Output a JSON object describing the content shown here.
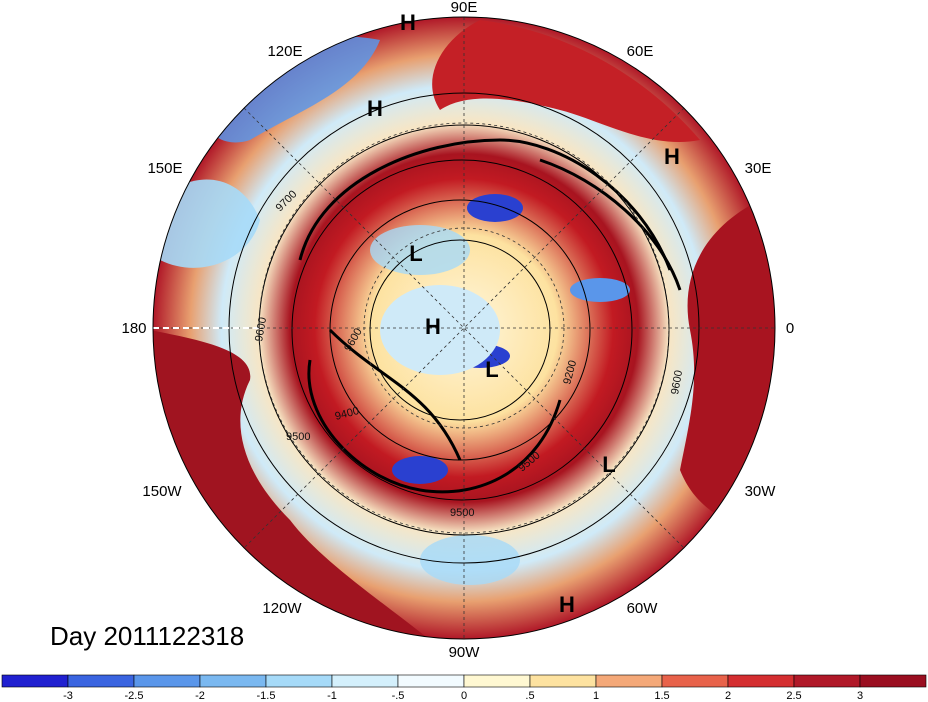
{
  "map": {
    "date_label": "Day 2011122318",
    "lon_labels": [
      "90E",
      "60E",
      "30E",
      "0",
      "30W",
      "60W",
      "90W",
      "120W",
      "150W",
      "180",
      "150E",
      "120E"
    ],
    "pressure_centers": [
      {
        "label": "H",
        "lon": 92,
        "lat": 13
      },
      {
        "label": "H",
        "lon": 110,
        "lat": 30
      },
      {
        "label": "H",
        "lon": 30,
        "lat": 30
      },
      {
        "label": "L",
        "lon": 130,
        "lat": 66
      },
      {
        "label": "H",
        "lon": 180,
        "lat": 88
      },
      {
        "label": "L",
        "lon": -55,
        "lat": 74
      },
      {
        "label": "L",
        "lon": -30,
        "lat": 50
      },
      {
        "label": "H",
        "lon": -65,
        "lat": 15
      }
    ],
    "contour_labels": [
      "9700",
      "9600",
      "9600",
      "9400",
      "9500",
      "9200",
      "9500",
      "9500",
      "9600"
    ],
    "colors": {
      "boundary": "#000000",
      "dateline": "#ffffff"
    }
  },
  "colorbar": {
    "tick_labels": [
      "-3",
      "-2.5",
      "-2",
      "-1.5",
      "-1",
      "-.5",
      "0",
      ".5",
      "1",
      "1.5",
      "2",
      "2.5",
      "3"
    ],
    "colors": [
      "#2020d0",
      "#3a64e0",
      "#5a96ea",
      "#7ab8f0",
      "#a6daf8",
      "#d4f0fc",
      "#f2fbff",
      "#fff8d2",
      "#fde2a0",
      "#f4a878",
      "#e8624a",
      "#d42e30",
      "#b01828",
      "#9a0e20"
    ]
  }
}
